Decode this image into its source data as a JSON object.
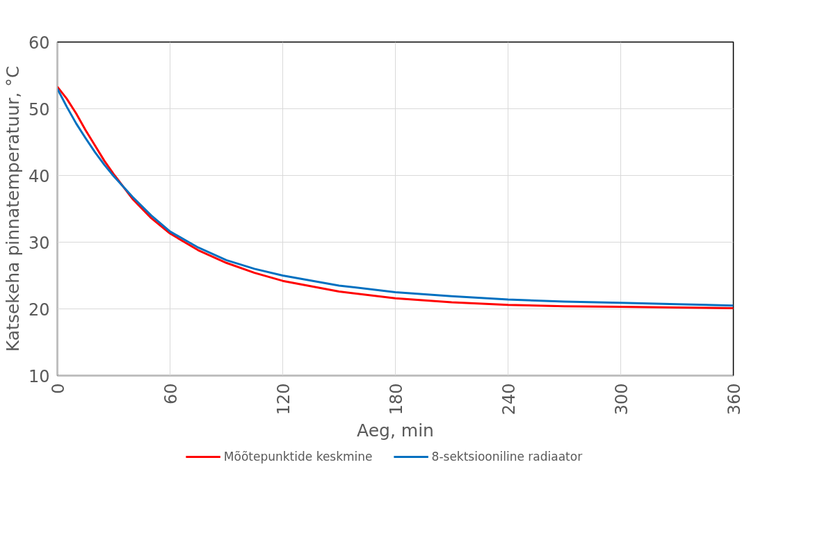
{
  "chart_data": {
    "type": "line",
    "xlabel": "Aeg, min",
    "ylabel": "Katsekeha pinnatemperatuur, °C",
    "xlim": [
      0,
      360
    ],
    "xticks": [
      0,
      60,
      120,
      180,
      240,
      300,
      360
    ],
    "ylim": [
      10,
      60
    ],
    "yticks": [
      10,
      20,
      30,
      40,
      50,
      60
    ],
    "grid": true,
    "legend": "bottom",
    "marker": "none",
    "line_style": "solid",
    "series": [
      {
        "name": "Mõõtepunktide keskmine",
        "color": "#ff0000",
        "x": [
          0,
          5,
          10,
          15,
          20,
          25,
          30,
          40,
          50,
          60,
          75,
          90,
          105,
          120,
          150,
          180,
          210,
          240,
          270,
          300,
          330,
          360
        ],
        "values": [
          53.3,
          51.5,
          49.3,
          46.8,
          44.5,
          42.2,
          40.2,
          36.5,
          33.6,
          31.3,
          28.8,
          26.9,
          25.4,
          24.2,
          22.6,
          21.6,
          21.0,
          20.6,
          20.4,
          20.3,
          20.2,
          20.1
        ]
      },
      {
        "name": "8-sektsiooniline radiaator",
        "color": "#0070c0",
        "x": [
          0,
          5,
          10,
          15,
          20,
          25,
          30,
          40,
          50,
          60,
          75,
          90,
          105,
          120,
          150,
          180,
          210,
          240,
          270,
          300,
          330,
          360
        ],
        "values": [
          53.0,
          50.3,
          47.8,
          45.6,
          43.5,
          41.6,
          39.9,
          36.8,
          34.0,
          31.6,
          29.2,
          27.3,
          26.0,
          25.0,
          23.5,
          22.5,
          21.9,
          21.4,
          21.1,
          20.9,
          20.7,
          20.5
        ]
      }
    ]
  }
}
